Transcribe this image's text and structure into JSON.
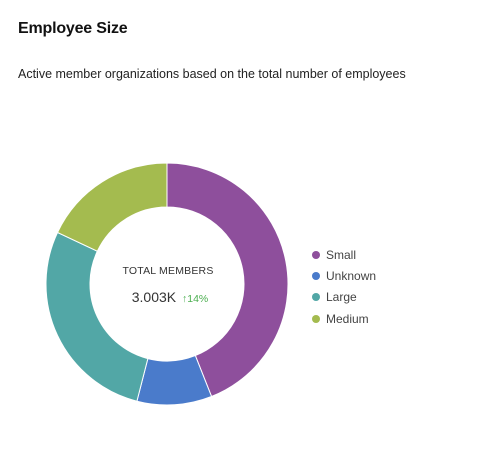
{
  "header": {
    "title": "Employee Size",
    "subtitle": "Active member organizations based on the total number of employees"
  },
  "center": {
    "label": "TOTAL MEMBERS",
    "value": "3.003K",
    "delta_arrow": "↑",
    "delta": "14%",
    "delta_color": "#4caf50"
  },
  "chart_data": {
    "type": "pie",
    "donut": true,
    "categories": [
      "Small",
      "Unknown",
      "Large",
      "Medium"
    ],
    "values": [
      44,
      10,
      28,
      18
    ],
    "colors": [
      "#8e4f9c",
      "#4a7bcb",
      "#52a7a6",
      "#a4bb4f"
    ],
    "legend_position": "right"
  }
}
